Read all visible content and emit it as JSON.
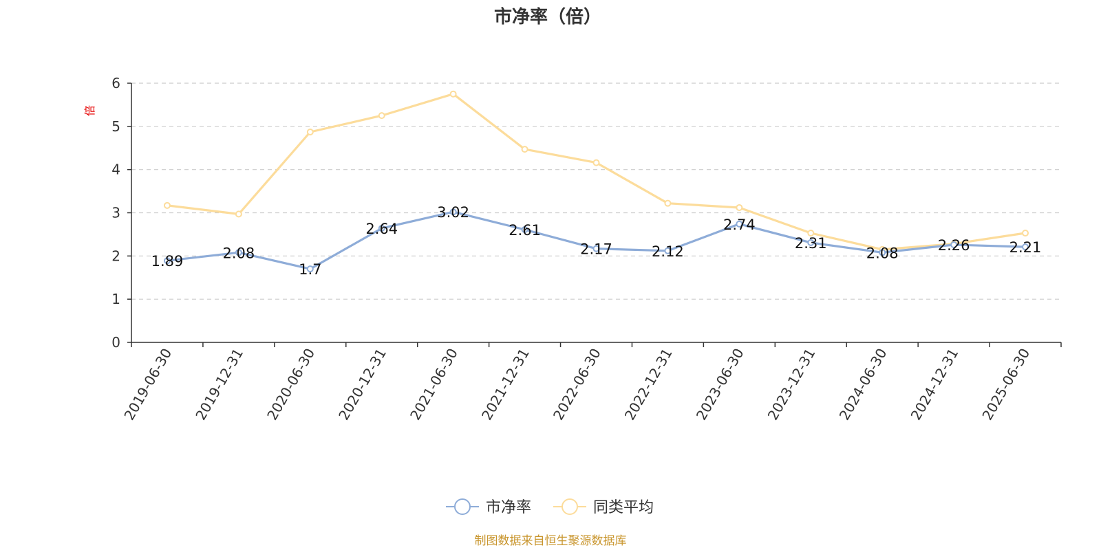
{
  "chart_data": {
    "type": "line",
    "title": "市净率（倍）",
    "ylabel": "倍",
    "xlabel": "",
    "ylim": [
      0,
      6
    ],
    "yticks": [
      0,
      1,
      2,
      3,
      4,
      5,
      6
    ],
    "grid": "horizontal-dashed",
    "legend_position": "bottom-center",
    "categories": [
      "2019-06-30",
      "2019-12-31",
      "2020-06-30",
      "2020-12-31",
      "2021-06-30",
      "2021-12-31",
      "2022-06-30",
      "2022-12-31",
      "2023-06-30",
      "2023-12-31",
      "2024-06-30",
      "2024-12-31",
      "2025-06-30"
    ],
    "series": [
      {
        "name": "市净率",
        "color": "#8eacd8",
        "values": [
          1.89,
          2.08,
          1.7,
          2.64,
          3.02,
          2.61,
          2.17,
          2.12,
          2.74,
          2.31,
          2.08,
          2.26,
          2.21
        ],
        "labels": [
          "1.89",
          "2.08",
          "1.7",
          "2.64",
          "3.02",
          "2.61",
          "2.17",
          "2.12",
          "2.74",
          "2.31",
          "2.08",
          "2.26",
          "2.21"
        ]
      },
      {
        "name": "同类平均",
        "color": "#fcdc9b",
        "values": [
          3.17,
          2.97,
          4.87,
          5.25,
          5.75,
          4.47,
          4.16,
          3.22,
          3.12,
          2.53,
          2.15,
          2.28,
          2.53
        ]
      }
    ],
    "source_note": "制图数据来自恒生聚源数据库"
  }
}
